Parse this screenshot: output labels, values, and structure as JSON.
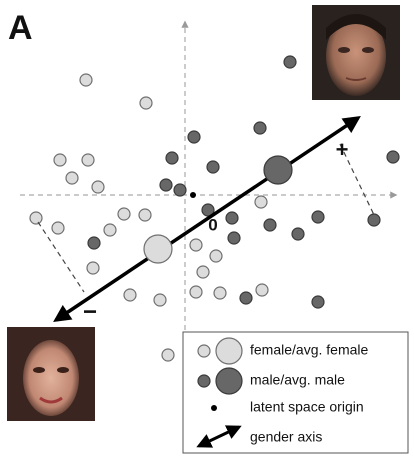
{
  "panel_label": "A",
  "axis_marks": {
    "plus": "+",
    "minus": "−",
    "origin": "0"
  },
  "legend": {
    "items": [
      "female/avg. female",
      "male/avg. male",
      "latent space origin",
      "gender axis"
    ]
  }
}
